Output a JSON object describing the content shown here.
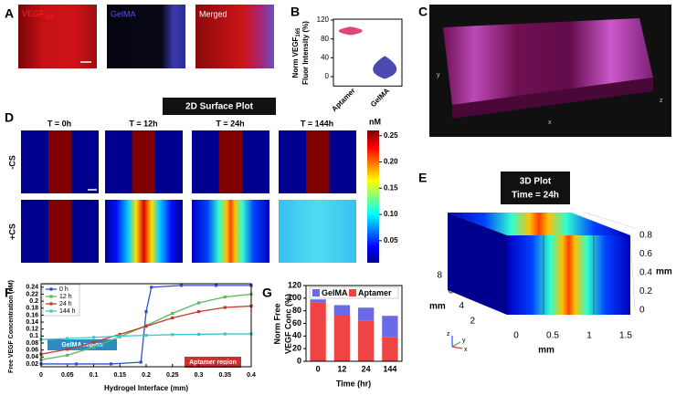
{
  "panel_labels": [
    "A",
    "B",
    "C",
    "D",
    "E",
    "F",
    "G"
  ],
  "panel_a": {
    "vegf": {
      "text": "VEGF",
      "sub": "165"
    },
    "gelma": "GelMA",
    "merged": "Merged"
  },
  "panel_c": {
    "axes": [
      "x",
      "y",
      "z"
    ]
  },
  "panel_d": {
    "title": "2D Surface Plot",
    "columns": [
      "T = 0h",
      "T = 12h",
      "T = 24h",
      "T = 144h"
    ],
    "rows": [
      "-CS",
      "+CS"
    ],
    "colorbar": {
      "label": "nM",
      "lim": [
        0.008,
        0.26
      ],
      "ticks": [
        0.05,
        {
          "value": 0.1,
          "label": "0.10"
        },
        0.15,
        {
          "value": 0.2,
          "label": "0.20"
        },
        0.25
      ]
    }
  },
  "panel_e": {
    "title": "3D Plot",
    "subtitle": "Time = 24h",
    "unit": "mm",
    "zticks": [
      0,
      0.2,
      0.4,
      0.6,
      0.8
    ],
    "yticks": [
      2,
      4,
      6,
      8
    ],
    "xticks": [
      0,
      0.5,
      1,
      1.5
    ],
    "axes": [
      "z",
      "y",
      "x"
    ]
  },
  "chart_data": [
    {
      "type": "violin",
      "ylabel": {
        "line1": "Norm VEGF",
        "sub": "165",
        "line2": "Fluor Intensity (%)"
      },
      "categories": [
        "Aptamer",
        "GelMA"
      ],
      "values": [
        97,
        12
      ],
      "min": [
        88,
        -5
      ],
      "max": [
        106,
        44
      ],
      "colors": [
        "#e0457b",
        "#4a4ab0"
      ],
      "ylim": [
        -20,
        122
      ],
      "yticks": [
        0,
        40,
        80,
        120
      ]
    },
    {
      "type": "line",
      "xlabel": "Hydrogel Interface (mm)",
      "ylabel": "Free VEGF Concentration (nM)",
      "xlim": [
        0,
        0.4
      ],
      "ylim": [
        0.012,
        0.25
      ],
      "xticks": [
        0,
        0.05,
        0.1,
        0.15,
        0.2,
        0.25,
        0.3,
        0.35,
        0.4
      ],
      "yticks": [
        0.02,
        0.04,
        0.06,
        0.08,
        0.1,
        0.12,
        0.14,
        0.16,
        0.18,
        0.2,
        0.22,
        0.24
      ],
      "annotations": [
        "GelMA region",
        "Aptamer region"
      ],
      "series": [
        {
          "name": "0 h",
          "color": "#3050c8",
          "x": [
            0,
            0.067,
            0.133,
            0.19,
            0.2,
            0.21,
            0.267,
            0.333,
            0.4
          ],
          "values": [
            0.02,
            0.02,
            0.02,
            0.025,
            0.17,
            0.24,
            0.245,
            0.245,
            0.245
          ]
        },
        {
          "name": "12 h",
          "color": "#5cb85c",
          "x": [
            0,
            0.05,
            0.1,
            0.15,
            0.2,
            0.25,
            0.3,
            0.35,
            0.4
          ],
          "values": [
            0.032,
            0.045,
            0.068,
            0.098,
            0.13,
            0.165,
            0.195,
            0.212,
            0.22
          ]
        },
        {
          "name": "24 h",
          "color": "#c0392b",
          "x": [
            0,
            0.05,
            0.1,
            0.15,
            0.2,
            0.25,
            0.3,
            0.35,
            0.4
          ],
          "values": [
            0.048,
            0.062,
            0.082,
            0.105,
            0.128,
            0.152,
            0.17,
            0.182,
            0.186
          ]
        },
        {
          "name": "144 h",
          "color": "#3cc8c8",
          "x": [
            0,
            0.05,
            0.1,
            0.15,
            0.2,
            0.25,
            0.3,
            0.35,
            0.4
          ],
          "values": [
            0.09,
            0.093,
            0.096,
            0.1,
            0.102,
            0.104,
            0.105,
            0.106,
            0.106
          ]
        }
      ]
    },
    {
      "type": "bar",
      "stacked": true,
      "xlabel": "Time (hr)",
      "ylabel": {
        "line1": "Norm Free",
        "line2": "VEGF Conc (%)"
      },
      "categories": [
        "0",
        "12",
        "24",
        "144"
      ],
      "ylim": [
        0,
        120
      ],
      "yticks": [
        0,
        20,
        40,
        60,
        80,
        100,
        120
      ],
      "series": [
        {
          "name": "Aptamer",
          "color": "#f04444",
          "values": [
            93,
            73,
            64,
            38
          ]
        },
        {
          "name": "GelMA",
          "color": "#6a6ae6",
          "values": [
            5,
            16,
            21,
            34
          ]
        }
      ]
    }
  ]
}
